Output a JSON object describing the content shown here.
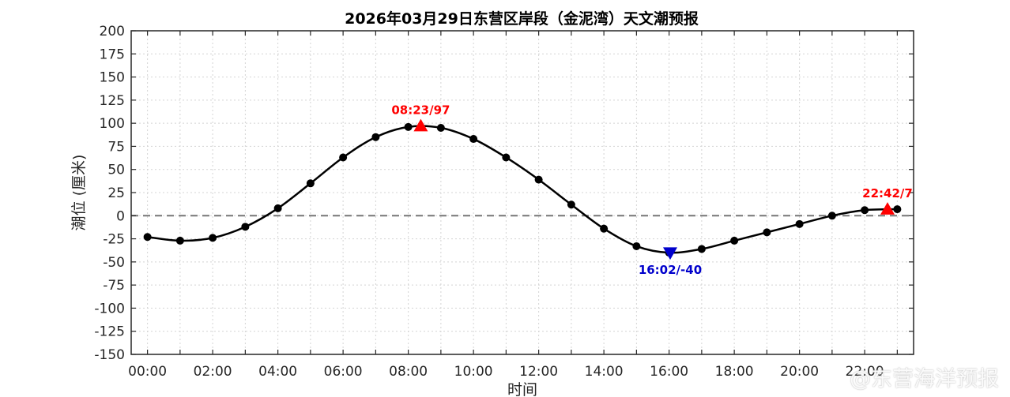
{
  "chart_data": {
    "type": "line",
    "title": "2026年03月29日东营区岸段（金泥湾）天文潮预报",
    "xlabel": "时间",
    "ylabel": "潮位 (厘米)",
    "xlim": [
      -0.5,
      23.5
    ],
    "ylim": [
      -150,
      200
    ],
    "grid": true,
    "x_ticks": [
      0,
      2,
      4,
      6,
      8,
      10,
      12,
      14,
      16,
      18,
      20,
      22
    ],
    "x_tick_labels": [
      "00:00",
      "02:00",
      "04:00",
      "06:00",
      "08:00",
      "10:00",
      "12:00",
      "14:00",
      "16:00",
      "18:00",
      "20:00",
      "22:00"
    ],
    "y_ticks": [
      -150,
      -125,
      -100,
      -75,
      -50,
      -25,
      0,
      25,
      50,
      75,
      100,
      125,
      150,
      175,
      200
    ],
    "series": [
      {
        "x": [
          0,
          1,
          2,
          3,
          4,
          5,
          6,
          7,
          8,
          9,
          10,
          11,
          12,
          13,
          14,
          15,
          16,
          17,
          18,
          19,
          20,
          21,
          22,
          23
        ],
        "values": [
          -23,
          -27,
          -24,
          -12,
          8,
          35,
          63,
          85,
          96,
          95,
          83,
          63,
          39,
          12,
          -14,
          -33,
          -40,
          -36,
          -27,
          -18,
          -9,
          0,
          6,
          7
        ],
        "color": "#000000"
      }
    ],
    "annotations": [
      {
        "kind": "high",
        "time": 8.383,
        "value": 97,
        "label": "08:23/97",
        "color": "#ff0000"
      },
      {
        "kind": "low",
        "time": 16.033,
        "value": -40,
        "label": "16:02/-40",
        "color": "#0000cc"
      },
      {
        "kind": "high",
        "time": 22.7,
        "value": 7,
        "label": "22:42/7",
        "color": "#ff0000"
      }
    ],
    "zero_line": {
      "value": 0,
      "style": "dashed",
      "color": "#777777"
    }
  },
  "watermark": "@东营海洋预报"
}
